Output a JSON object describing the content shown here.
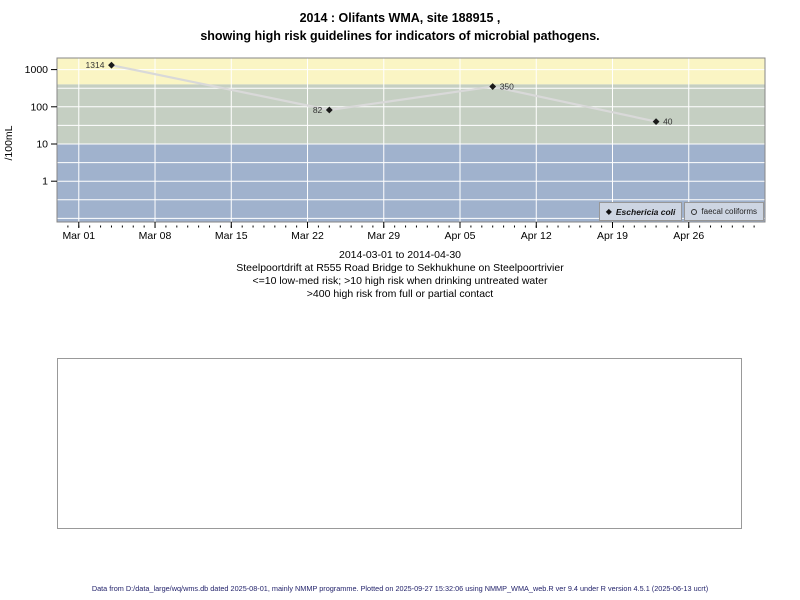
{
  "title": {
    "line1": "2014 : Olifants WMA, site 188915 ,",
    "line2": "showing high risk guidelines for indicators of microbial pathogens."
  },
  "chart_data": {
    "type": "line",
    "title": "2014 : Olifants WMA, site 188915 , showing high risk guidelines for indicators of microbial pathogens.",
    "ylabel": "/100mL",
    "xlabel": "",
    "y_scale": "log10",
    "y_range": [
      0.08,
      2050
    ],
    "x_range": [
      "2014-02-27",
      "2014-05-03"
    ],
    "y_ticks": [
      1,
      10,
      100,
      1000
    ],
    "x_ticks": [
      {
        "date": "2014-03-01",
        "label": "Mar 01"
      },
      {
        "date": "2014-03-08",
        "label": "Mar 08"
      },
      {
        "date": "2014-03-15",
        "label": "Mar 15"
      },
      {
        "date": "2014-03-22",
        "label": "Mar 22"
      },
      {
        "date": "2014-03-29",
        "label": "Mar 29"
      },
      {
        "date": "2014-04-05",
        "label": "Apr 05"
      },
      {
        "date": "2014-04-12",
        "label": "Apr 12"
      },
      {
        "date": "2014-04-19",
        "label": "Apr 19"
      },
      {
        "date": "2014-04-26",
        "label": "Apr 26"
      }
    ],
    "minor_x_ticks": "daily",
    "grid": {
      "color": "#ffffff",
      "horizontal": "every half decade",
      "vertical": "weekly"
    },
    "bands": [
      {
        "name": "high-risk-full-partial-contact",
        "from": 400,
        "to": 2050,
        "color": "#faf5c4"
      },
      {
        "name": "high-risk-drinking-untreated",
        "from": 10,
        "to": 400,
        "color": "#c5cfc2"
      },
      {
        "name": "low-med-risk",
        "from": 0.08,
        "to": 10,
        "color": "#a0b2cd"
      }
    ],
    "series": [
      {
        "name": "Eschericia coli",
        "marker": "filled-diamond",
        "marker_color": "#1a1a1a",
        "line_color": "#d9d9d9",
        "points": [
          {
            "date": "2014-03-04",
            "value": 1314,
            "label": "1314",
            "label_side": "left"
          },
          {
            "date": "2014-03-24",
            "value": 82,
            "label": "82",
            "label_side": "left"
          },
          {
            "date": "2014-04-08",
            "value": 350,
            "label": "350",
            "label_side": "right"
          },
          {
            "date": "2014-04-23",
            "value": 40,
            "label": "40",
            "label_side": "right"
          }
        ]
      },
      {
        "name": "faecal coliforms",
        "marker": "open-circle",
        "marker_color": "#333333",
        "points": []
      }
    ],
    "legend": {
      "position": "bottom-right",
      "entries": [
        {
          "label": "Eschericia coli",
          "marker": "filled-diamond",
          "italic": true
        },
        {
          "label": "faecal coliforms",
          "marker": "open-circle",
          "italic": false
        }
      ]
    }
  },
  "subtitle": {
    "line1": "2014-03-01 to 2014-04-30",
    "line2": "Steelpoortdrift at R555 Road Bridge to Sekhukhune on Steelpoortrivier",
    "line3": "<=10 low-med risk; >10 high risk when drinking untreated water",
    "line4": ">400 high risk from full or partial contact"
  },
  "footer": {
    "text": "Data from D:/data_large/wq/wms.db dated 2025-08-01, mainly NMMP programme. Plotted on 2025-09-27 15:32:06 using NMMP_WMA_web.R ver 9.4 under R version 4.5.1 (2025-06-13 ucrt)"
  }
}
